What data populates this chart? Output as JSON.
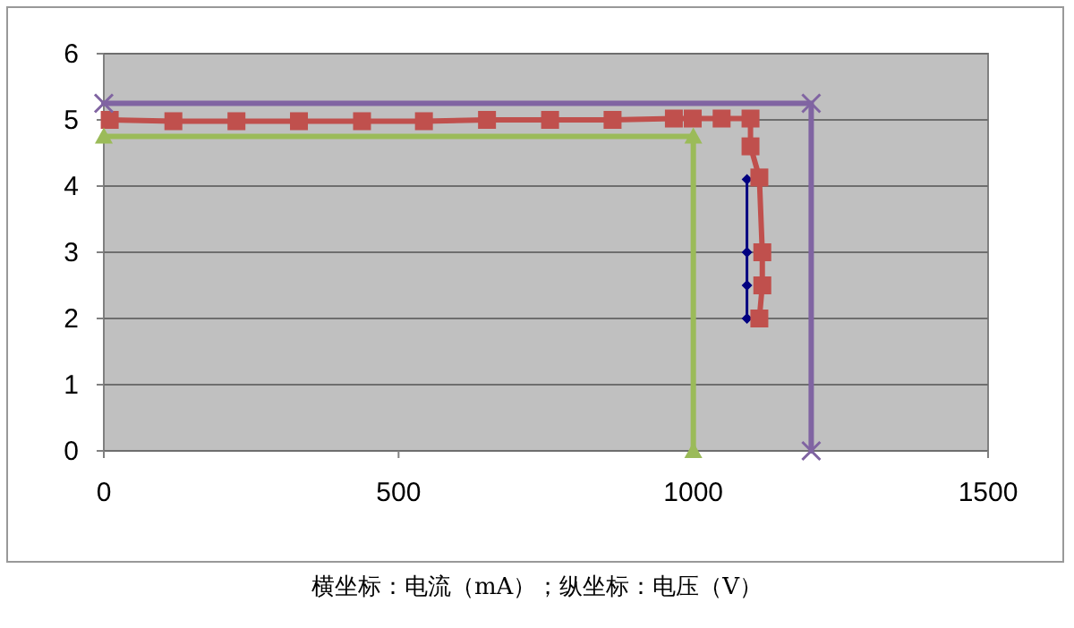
{
  "chart_data": {
    "type": "line",
    "xlim": [
      0,
      1500
    ],
    "ylim": [
      0,
      6
    ],
    "xticks": [
      0,
      500,
      1000,
      1500
    ],
    "yticks": [
      0,
      1,
      2,
      3,
      4,
      5,
      6
    ],
    "grid": "y",
    "series": [
      {
        "color": "#000080",
        "marker": "diamond",
        "x": [
          1091,
          1091,
          1091,
          1091
        ],
        "values": [
          4.1,
          3.0,
          2.5,
          2.0
        ]
      },
      {
        "color": "#c0504d",
        "marker": "square",
        "x": [
          10,
          118,
          225,
          331,
          438,
          543,
          650,
          757,
          863,
          967,
          999,
          1048,
          1097,
          1097,
          1112,
          1117,
          1117,
          1112
        ],
        "values": [
          5.0,
          4.98,
          4.98,
          4.98,
          4.98,
          4.98,
          5.0,
          5.0,
          5.0,
          5.02,
          5.02,
          5.02,
          5.02,
          4.6,
          4.13,
          3.0,
          2.5,
          2.0
        ]
      },
      {
        "color": "#9bbb59",
        "marker": "triangle",
        "x": [
          0,
          1000,
          1000
        ],
        "values": [
          4.75,
          4.75,
          0
        ]
      },
      {
        "color": "#8064a2",
        "marker": "cross",
        "x": [
          0,
          1200,
          1200
        ],
        "values": [
          5.25,
          5.25,
          0
        ]
      }
    ],
    "annotations": [
      "横坐标：电流（mA）；纵坐标：电压（V）"
    ]
  }
}
